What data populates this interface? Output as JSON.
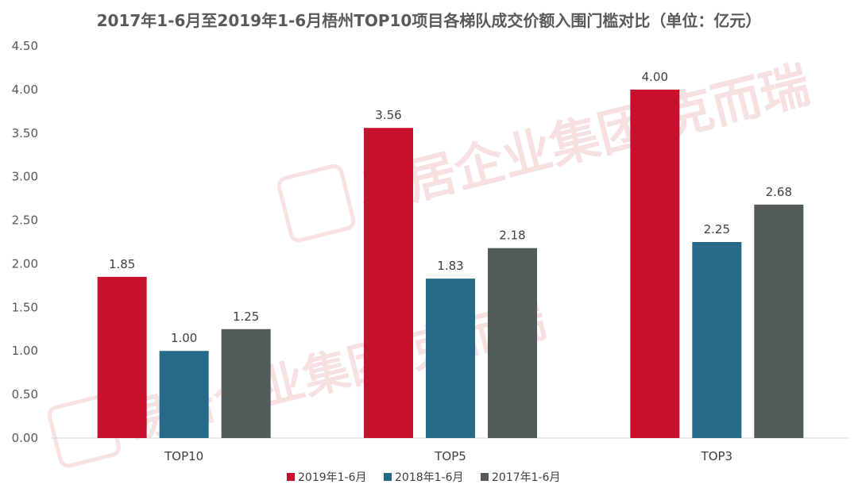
{
  "chart_data": {
    "type": "bar",
    "title": "2017年1-6月至2019年1-6月梧州TOP10项目各梯队成交价额入围门槛对比（单位：亿元）",
    "categories": [
      "TOP10",
      "TOP5",
      "TOP3"
    ],
    "series": [
      {
        "name": "2019年1-6月",
        "color": "#c8102e",
        "values": [
          1.85,
          3.56,
          4.0
        ],
        "labels": [
          "1.85",
          "3.56",
          "4.00"
        ]
      },
      {
        "name": "2018年1-6月",
        "color": "#276a87",
        "values": [
          1.0,
          1.83,
          2.25
        ],
        "labels": [
          "1.00",
          "1.83",
          "2.25"
        ]
      },
      {
        "name": "2017年1-6月",
        "color": "#535a5a",
        "values": [
          1.25,
          2.18,
          2.68
        ],
        "labels": [
          "1.25",
          "2.18",
          "2.68"
        ]
      }
    ],
    "ylim": [
      0,
      4.5
    ],
    "yticks": [
      "0.00",
      "0.50",
      "1.00",
      "1.50",
      "2.00",
      "2.50",
      "3.00",
      "3.50",
      "4.00",
      "4.50"
    ],
    "grid": false,
    "legend_position": "bottom"
  },
  "watermark": {
    "text": "易居企业集团·克而瑞",
    "logo": "易居"
  }
}
